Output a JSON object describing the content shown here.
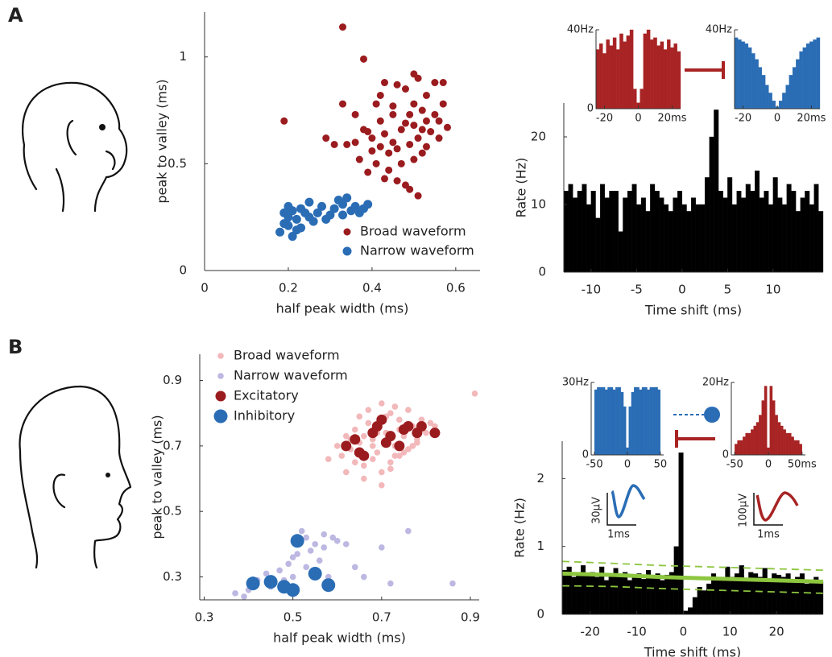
{
  "panel_labels": [
    "A",
    "B"
  ],
  "waveform_insets": [
    {
      "amplitude_label": "30μV",
      "time_label": "1ms"
    },
    {
      "amplitude_label": "100μV",
      "time_label": "1ms"
    }
  ],
  "chart_data": [
    {
      "type": "scatter",
      "xlabel": "half peak width (ms)",
      "ylabel": "peak to valley (ms)",
      "xlim": [
        0,
        0.658
      ],
      "ylim": [
        0,
        1.21
      ],
      "xticks": [
        0,
        0.2,
        0.4,
        0.6
      ],
      "yticks": [
        0,
        0.5,
        1
      ],
      "legend": "lower right",
      "series": [
        {
          "name": "Broad waveform",
          "color": "#9b1c1f",
          "x": [
            0.33,
            0.38,
            0.19,
            0.43,
            0.42,
            0.5,
            0.51,
            0.46,
            0.48,
            0.55,
            0.57,
            0.53,
            0.5,
            0.52,
            0.55,
            0.57,
            0.49,
            0.45,
            0.41,
            0.33,
            0.36,
            0.42,
            0.38,
            0.39,
            0.4,
            0.43,
            0.45,
            0.47,
            0.48,
            0.5,
            0.52,
            0.54,
            0.56,
            0.58,
            0.51,
            0.49,
            0.46,
            0.44,
            0.42,
            0.4,
            0.36,
            0.34,
            0.31,
            0.29,
            0.37,
            0.41,
            0.44,
            0.47,
            0.5,
            0.53,
            0.52,
            0.56,
            0.43,
            0.46,
            0.48,
            0.49,
            0.51,
            0.39,
            0.45,
            0.53
          ],
          "y": [
            1.14,
            0.99,
            0.7,
            0.88,
            0.82,
            0.92,
            0.9,
            0.87,
            0.85,
            0.88,
            0.88,
            0.82,
            0.78,
            0.75,
            0.73,
            0.78,
            0.73,
            0.77,
            0.78,
            0.78,
            0.73,
            0.7,
            0.66,
            0.65,
            0.62,
            0.64,
            0.6,
            0.66,
            0.69,
            0.68,
            0.66,
            0.65,
            0.7,
            0.67,
            0.62,
            0.59,
            0.57,
            0.55,
            0.58,
            0.56,
            0.6,
            0.59,
            0.59,
            0.62,
            0.52,
            0.5,
            0.47,
            0.5,
            0.52,
            0.58,
            0.55,
            0.62,
            0.43,
            0.42,
            0.4,
            0.38,
            0.35,
            0.46,
            0.73,
            0.7
          ]
        },
        {
          "name": "Narrow waveform",
          "color": "#2a6db5",
          "x": [
            0.18,
            0.19,
            0.2,
            0.21,
            0.2,
            0.22,
            0.23,
            0.21,
            0.24,
            0.25,
            0.26,
            0.27,
            0.28,
            0.29,
            0.3,
            0.31,
            0.32,
            0.33,
            0.34,
            0.35,
            0.36,
            0.38,
            0.39,
            0.22,
            0.19,
            0.25,
            0.23,
            0.33,
            0.37,
            0.2
          ],
          "y": [
            0.18,
            0.22,
            0.25,
            0.28,
            0.3,
            0.24,
            0.2,
            0.16,
            0.27,
            0.32,
            0.23,
            0.27,
            0.3,
            0.24,
            0.26,
            0.29,
            0.33,
            0.31,
            0.34,
            0.28,
            0.3,
            0.29,
            0.31,
            0.19,
            0.27,
            0.25,
            0.29,
            0.26,
            0.27,
            0.21
          ]
        }
      ]
    },
    {
      "type": "histogram",
      "xlabel": "Time shift (ms)",
      "ylabel": "Rate (Hz)",
      "color": "#000000",
      "xlim": [
        -13,
        15.5
      ],
      "ylim": [
        0,
        25
      ],
      "xticks": [
        -10,
        -5,
        0,
        5,
        10
      ],
      "yticks": [
        0,
        10,
        20
      ],
      "bins": [
        -13,
        -12.5,
        -12,
        -11.5,
        -11,
        -10.5,
        -10,
        -9.5,
        -9,
        -8.5,
        -8,
        -7.5,
        -7,
        -6.5,
        -6,
        -5.5,
        -5,
        -4.5,
        -4,
        -3.5,
        -3,
        -2.5,
        -2,
        -1.5,
        -1,
        -0.5,
        0,
        0.5,
        1,
        1.5,
        2,
        2.5,
        3,
        3.5,
        4,
        4.5,
        5,
        5.5,
        6,
        6.5,
        7,
        7.5,
        8,
        8.5,
        9,
        9.5,
        10,
        10.5,
        11,
        11.5,
        12,
        12.5,
        13,
        13.5,
        14,
        14.5,
        15,
        15.5
      ],
      "values": [
        12,
        13,
        11,
        12,
        13,
        10,
        12,
        8,
        13,
        11,
        12,
        12,
        6,
        11,
        12,
        13,
        10,
        11,
        9,
        13,
        12,
        11,
        10,
        9,
        11,
        12,
        10,
        9,
        11,
        10,
        10,
        14,
        20,
        24,
        12,
        11,
        14,
        10,
        12,
        11,
        13,
        12,
        15,
        11,
        12,
        10,
        14,
        11,
        10,
        13,
        12,
        9,
        11,
        12,
        10,
        13,
        9
      ]
    },
    {
      "type": "histogram",
      "color": "#a82424",
      "xlim": [
        -25,
        25
      ],
      "ylim": [
        0,
        40
      ],
      "xticks": [
        -20,
        0,
        {
          "value": 20,
          "label": "20ms"
        }
      ],
      "yticks": [
        0,
        {
          "value": 40,
          "label": "40Hz"
        }
      ],
      "bins": [
        -25,
        -23,
        -21,
        -19,
        -17,
        -15,
        -13,
        -11,
        -9,
        -7,
        -5,
        -3,
        -1,
        1,
        3,
        5,
        7,
        9,
        11,
        13,
        15,
        17,
        19,
        21,
        23,
        25
      ],
      "values": [
        30,
        33,
        28,
        35,
        32,
        36,
        30,
        38,
        34,
        37,
        40,
        10,
        3,
        10,
        38,
        40,
        35,
        36,
        32,
        34,
        30,
        35,
        31,
        33,
        29
      ]
    },
    {
      "type": "histogram",
      "color": "#2a6db5",
      "xlim": [
        -25,
        25
      ],
      "ylim": [
        0,
        40
      ],
      "xticks": [
        -20,
        0,
        {
          "value": 20,
          "label": "20ms"
        }
      ],
      "yticks": [
        {
          "value": 40,
          "label": "40Hz"
        }
      ],
      "bins": [
        -25,
        -23,
        -21,
        -19,
        -17,
        -15,
        -13,
        -11,
        -9,
        -7,
        -5,
        -3,
        -1,
        1,
        3,
        5,
        7,
        9,
        11,
        13,
        15,
        17,
        19,
        21,
        23,
        25
      ],
      "values": [
        36,
        35,
        34,
        33,
        31,
        28,
        25,
        21,
        17,
        12,
        8,
        4,
        1,
        4,
        8,
        12,
        17,
        21,
        25,
        29,
        31,
        33,
        34,
        35,
        36
      ]
    },
    {
      "type": "scatter",
      "xlabel": "half peak width (ms)",
      "ylabel": "peak to valley (ms)",
      "xlim": [
        0.29,
        0.92
      ],
      "ylim": [
        0.23,
        0.98
      ],
      "xticks": [
        0.3,
        0.5,
        0.7,
        0.9
      ],
      "yticks": [
        0.3,
        0.5,
        0.7,
        0.9
      ],
      "legend": "upper left",
      "series": [
        {
          "name": "Broad waveform",
          "color": "#f2b8ba",
          "x": [
            0.58,
            0.6,
            0.61,
            0.62,
            0.63,
            0.64,
            0.65,
            0.66,
            0.67,
            0.68,
            0.69,
            0.7,
            0.71,
            0.72,
            0.73,
            0.74,
            0.75,
            0.76,
            0.77,
            0.78,
            0.79,
            0.8,
            0.81,
            0.82,
            0.62,
            0.64,
            0.66,
            0.68,
            0.7,
            0.72,
            0.74,
            0.76,
            0.78,
            0.65,
            0.67,
            0.69,
            0.71,
            0.73,
            0.75,
            0.7,
            0.72,
            0.68,
            0.66,
            0.74,
            0.71,
            0.69,
            0.73,
            0.91,
            0.63,
            0.77
          ],
          "y": [
            0.66,
            0.7,
            0.67,
            0.73,
            0.69,
            0.75,
            0.71,
            0.64,
            0.77,
            0.72,
            0.68,
            0.83,
            0.74,
            0.8,
            0.7,
            0.78,
            0.73,
            0.81,
            0.76,
            0.72,
            0.78,
            0.74,
            0.77,
            0.76,
            0.62,
            0.65,
            0.6,
            0.66,
            0.58,
            0.63,
            0.67,
            0.69,
            0.71,
            0.79,
            0.81,
            0.76,
            0.79,
            0.82,
            0.68,
            0.62,
            0.65,
            0.7,
            0.73,
            0.75,
            0.71,
            0.74,
            0.67,
            0.86,
            0.72,
            0.7
          ]
        },
        {
          "name": "Narrow waveform",
          "color": "#bcb8e2",
          "x": [
            0.37,
            0.39,
            0.4,
            0.42,
            0.44,
            0.45,
            0.47,
            0.48,
            0.49,
            0.5,
            0.51,
            0.52,
            0.53,
            0.54,
            0.55,
            0.56,
            0.57,
            0.58,
            0.59,
            0.6,
            0.62,
            0.64,
            0.66,
            0.7,
            0.72,
            0.76,
            0.86,
            0.5,
            0.53,
            0.57
          ],
          "y": [
            0.25,
            0.24,
            0.26,
            0.29,
            0.31,
            0.27,
            0.32,
            0.29,
            0.34,
            0.3,
            0.37,
            0.44,
            0.42,
            0.38,
            0.4,
            0.35,
            0.43,
            0.3,
            0.42,
            0.41,
            0.4,
            0.33,
            0.3,
            0.39,
            0.28,
            0.44,
            0.28,
            0.36,
            0.33,
            0.39
          ]
        },
        {
          "name": "Excitatory",
          "color": "#9b1c1f",
          "x": [
            0.62,
            0.64,
            0.66,
            0.68,
            0.7,
            0.71,
            0.72,
            0.74,
            0.75,
            0.76,
            0.78,
            0.79,
            0.82,
            0.65,
            0.69
          ],
          "y": [
            0.7,
            0.72,
            0.67,
            0.74,
            0.78,
            0.71,
            0.73,
            0.7,
            0.75,
            0.76,
            0.74,
            0.76,
            0.74,
            0.68,
            0.76
          ]
        },
        {
          "name": "Inhibitory",
          "color": "#2a6db5",
          "x": [
            0.41,
            0.45,
            0.48,
            0.5,
            0.51,
            0.55,
            0.58
          ],
          "y": [
            0.28,
            0.285,
            0.27,
            0.26,
            0.41,
            0.31,
            0.275
          ]
        }
      ]
    },
    {
      "type": "histogram",
      "xlabel": "Time shift (ms)",
      "ylabel": "Rate (Hz)",
      "color": "#000000",
      "xlim": [
        -26,
        30
      ],
      "ylim": [
        0,
        2.55
      ],
      "xticks": [
        -20,
        -10,
        0,
        10,
        20
      ],
      "yticks": [
        0,
        1,
        2
      ],
      "bins": [
        -26,
        -25,
        -24,
        -23,
        -22,
        -21,
        -20,
        -19,
        -18,
        -17,
        -16,
        -15,
        -14,
        -13,
        -12,
        -11,
        -10,
        -9,
        -8,
        -7,
        -6,
        -5,
        -4,
        -3,
        -2,
        -1,
        0,
        1,
        2,
        3,
        4,
        5,
        6,
        7,
        8,
        9,
        10,
        11,
        12,
        13,
        14,
        15,
        16,
        17,
        18,
        19,
        20,
        21,
        22,
        23,
        24,
        25,
        26,
        27,
        28,
        29,
        30
      ],
      "values": [
        0.65,
        0.7,
        0.55,
        0.6,
        0.72,
        0.58,
        0.62,
        0.55,
        0.7,
        0.5,
        0.6,
        0.68,
        0.55,
        0.62,
        0.5,
        0.58,
        0.6,
        0.52,
        0.65,
        0.55,
        0.6,
        0.5,
        0.58,
        0.62,
        1.0,
        2.38,
        0.05,
        0.1,
        0.25,
        0.4,
        0.35,
        0.45,
        0.6,
        0.5,
        0.55,
        0.7,
        0.55,
        0.6,
        0.72,
        0.5,
        0.62,
        0.6,
        0.55,
        0.68,
        0.52,
        0.6,
        0.58,
        0.55,
        0.6,
        0.5,
        0.55,
        0.6,
        0.45,
        0.5,
        0.55,
        0.48
      ],
      "line_x": [
        -26,
        -15,
        -5,
        5,
        15,
        25,
        30
      ],
      "lines": [
        {
          "color": "#8dc63f",
          "style": "solid",
          "values": [
            0.6,
            0.58,
            0.55,
            0.53,
            0.51,
            0.49,
            0.48
          ]
        },
        {
          "color": "#8dc63f",
          "style": "dashed",
          "values": [
            0.78,
            0.75,
            0.72,
            0.7,
            0.68,
            0.66,
            0.65
          ]
        },
        {
          "color": "#8dc63f",
          "style": "dashed",
          "values": [
            0.42,
            0.41,
            0.38,
            0.36,
            0.34,
            0.32,
            0.31
          ]
        }
      ]
    },
    {
      "type": "histogram",
      "color": "#2a6db5",
      "xlim": [
        -55,
        55
      ],
      "ylim": [
        0,
        30
      ],
      "xticks": [
        -50,
        0,
        50
      ],
      "yticks": [
        0,
        {
          "value": 30,
          "label": "30Hz"
        }
      ],
      "bins": [
        -50,
        -46,
        -42,
        -38,
        -34,
        -30,
        -26,
        -22,
        -18,
        -14,
        -10,
        -6,
        -2,
        2,
        6,
        10,
        14,
        18,
        22,
        26,
        30,
        34,
        38,
        42,
        46,
        50
      ],
      "values": [
        27,
        28,
        28,
        28,
        27,
        28,
        28,
        27,
        28,
        28,
        26,
        20,
        3,
        20,
        26,
        28,
        28,
        27,
        28,
        28,
        27,
        28,
        28,
        28,
        27
      ]
    },
    {
      "type": "histogram",
      "color": "#a82424",
      "xlim": [
        -55,
        55
      ],
      "ylim": [
        0,
        20
      ],
      "xticks": [
        -50,
        0,
        {
          "value": 50,
          "label": "50ms"
        }
      ],
      "yticks": [
        0,
        {
          "value": 20,
          "label": "20Hz"
        }
      ],
      "bins": [
        -50,
        -46,
        -42,
        -38,
        -34,
        -30,
        -26,
        -22,
        -18,
        -14,
        -10,
        -6,
        -2,
        2,
        6,
        10,
        14,
        18,
        22,
        26,
        30,
        34,
        38,
        42,
        46,
        50
      ],
      "values": [
        3,
        4,
        4,
        5,
        6,
        6,
        7,
        8,
        9,
        11,
        15,
        19,
        2,
        19,
        15,
        11,
        9,
        8,
        7,
        6,
        6,
        5,
        4,
        4,
        3
      ]
    }
  ]
}
